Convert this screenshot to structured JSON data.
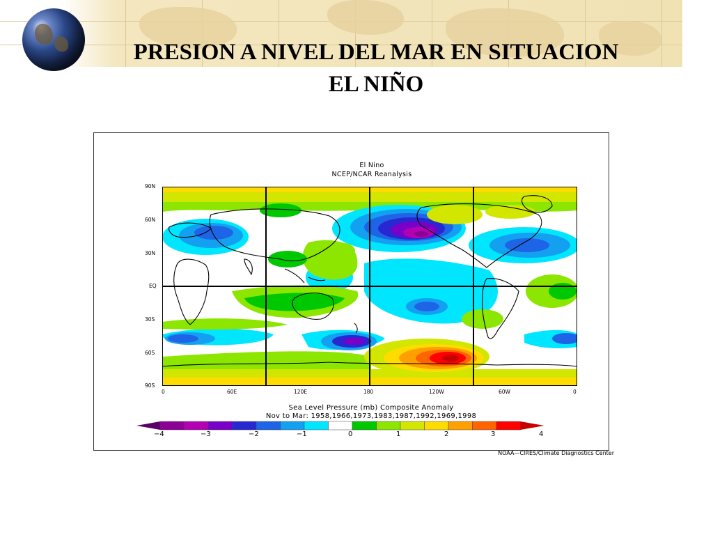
{
  "slide": {
    "title_line1": "PRESION A NIVEL DEL MAR EN SITUACION",
    "title_line2": "EL NIÑO"
  },
  "figure": {
    "title_line1": "El Nino",
    "title_line2": "NCEP/NCAR Reanalysis",
    "caption_line1": "Sea Level Pressure (mb)    Composite Anomaly",
    "caption_line2": "Nov to Mar: 1958,1966,1973,1983,1987,1992,1969,1998",
    "credit": "NOAA—CIRES/Climate Diagnostics Center",
    "lat_labels": [
      "90N",
      "60N",
      "30N",
      "EQ",
      "30S",
      "60S",
      "90S"
    ],
    "lon_labels": [
      "0",
      "60E",
      "120E",
      "180",
      "120W",
      "60W",
      "0"
    ],
    "legend": {
      "colors": [
        "#5a006a",
        "#8c0096",
        "#b400b4",
        "#7800c8",
        "#2828d2",
        "#1e64e6",
        "#14a0f0",
        "#00e6ff",
        "#ffffff",
        "#00c800",
        "#8ce600",
        "#d2e600",
        "#ffdc00",
        "#ffa000",
        "#ff6400",
        "#ff0000",
        "#c80000"
      ],
      "tick_labels": [
        "−4",
        "−3",
        "−2",
        "−1",
        "0",
        "1",
        "2",
        "3",
        "4"
      ]
    },
    "colors": {
      "frame": "#333333",
      "grid_lines": "#000000",
      "coastline": "#000000",
      "positive_strong": "#ff0000",
      "negative_strong": "#8c0096"
    }
  }
}
